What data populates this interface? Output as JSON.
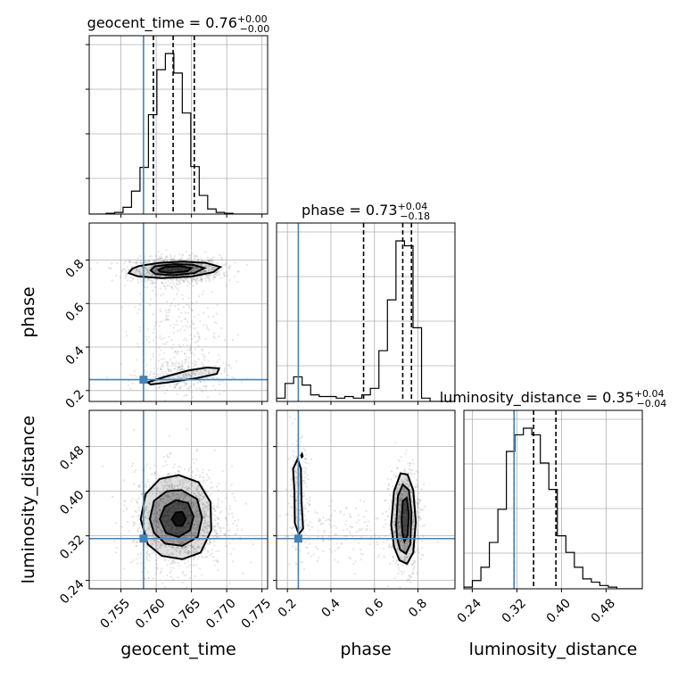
{
  "chart_data": {
    "type": "corner",
    "parameters": [
      "geocent_time",
      "phase",
      "luminosity_distance"
    ],
    "labels": {
      "geocent_time": "geocent_time",
      "phase": "phase",
      "luminosity_distance": "luminosity_distance"
    },
    "titles": [
      {
        "param": "geocent_time",
        "text": "geocent_time = 0.76",
        "sup": "+0.00",
        "sub": "−0.00"
      },
      {
        "param": "phase",
        "text": "phase = 0.73",
        "sup": "+0.04",
        "sub": "−0.18"
      },
      {
        "param": "luminosity_distance",
        "text": "luminosity_distance = 0.35",
        "sup": "+0.04",
        "sub": "−0.04"
      }
    ],
    "ranges": {
      "geocent_time": [
        0.7505,
        0.7758
      ],
      "phase": [
        0.15,
        0.97
      ],
      "luminosity_distance": [
        0.225,
        0.545
      ]
    },
    "ticks": {
      "geocent_time": {
        "values": [
          0.755,
          0.76,
          0.765,
          0.77,
          0.775
        ],
        "labels": [
          "0.755",
          "0.760",
          "0.765",
          "0.770",
          "0.775"
        ]
      },
      "phase_x": {
        "values": [
          0.2,
          0.4,
          0.6,
          0.8
        ],
        "labels": [
          "0.2",
          "0.4",
          "0.6",
          "0.8"
        ]
      },
      "phase_y": {
        "values": [
          0.2,
          0.4,
          0.6,
          0.8
        ],
        "labels": [
          "0.2",
          "0.4",
          "0.6",
          "0.8"
        ]
      },
      "luminosity_distance": {
        "values": [
          0.24,
          0.32,
          0.4,
          0.48
        ],
        "labels": [
          "0.24",
          "0.32",
          "0.40",
          "0.48"
        ]
      }
    },
    "truths": {
      "geocent_time": 0.7582,
      "phase": 0.25,
      "luminosity_distance": 0.315
    },
    "quantiles": {
      "geocent_time": [
        0.7596,
        0.7624,
        0.7654
      ],
      "phase": [
        0.55,
        0.73,
        0.77
      ],
      "luminosity_distance": [
        0.315,
        0.35,
        0.39
      ]
    },
    "histograms": {
      "geocent_time": {
        "edges": [
          0.7505,
          0.7517,
          0.7529,
          0.7541,
          0.7553,
          0.7565,
          0.7577,
          0.7589,
          0.7601,
          0.7613,
          0.7625,
          0.7637,
          0.7649,
          0.7661,
          0.7673,
          0.7685,
          0.7697,
          0.7709,
          0.7721,
          0.7733,
          0.7745,
          0.7757
        ],
        "counts": [
          0,
          0,
          1,
          2,
          8,
          27,
          55,
          117,
          170,
          189,
          166,
          119,
          56,
          22,
          6,
          2,
          1,
          0,
          0,
          0,
          0
        ]
      },
      "phase": {
        "edges": [
          0.15,
          0.1892,
          0.2284,
          0.2676,
          0.3068,
          0.346,
          0.3852,
          0.4244,
          0.4636,
          0.5028,
          0.542,
          0.5812,
          0.6204,
          0.6596,
          0.6988,
          0.738,
          0.7772,
          0.8164,
          0.8556,
          0.8948,
          0.934,
          0.97
        ],
        "counts": [
          0.02,
          0.11,
          0.15,
          0.1,
          0.04,
          0.03,
          0.03,
          0.02,
          0.03,
          0.02,
          0.04,
          0.08,
          0.31,
          0.62,
          0.98,
          0.95,
          0.45,
          0.02,
          0,
          0,
          0
        ]
      },
      "luminosity_distance": {
        "edges": [
          0.225,
          0.2402,
          0.2555,
          0.2707,
          0.286,
          0.3012,
          0.3164,
          0.3317,
          0.3469,
          0.3621,
          0.3774,
          0.3926,
          0.4079,
          0.4231,
          0.4383,
          0.4536,
          0.4688,
          0.484,
          0.4993,
          0.5145,
          0.5298,
          0.545
        ],
        "counts": [
          0.01,
          0.05,
          0.13,
          0.28,
          0.48,
          0.83,
          0.93,
          0.97,
          0.93,
          0.76,
          0.6,
          0.32,
          0.22,
          0.13,
          0.06,
          0.04,
          0.02,
          0.01,
          0,
          0,
          0
        ]
      }
    },
    "contours": {
      "phase_vs_geocent_time": [
        {
          "level": "outer",
          "points": [
            [
              0.7566,
              0.76
            ],
            [
              0.7575,
              0.772
            ],
            [
              0.7604,
              0.787
            ],
            [
              0.7638,
              0.793
            ],
            [
              0.767,
              0.787
            ],
            [
              0.7691,
              0.768
            ],
            [
              0.7681,
              0.744
            ],
            [
              0.765,
              0.724
            ],
            [
              0.7608,
              0.717
            ],
            [
              0.7574,
              0.725
            ],
            [
              0.7561,
              0.74
            ]
          ]
        },
        {
          "level": "middle",
          "points": [
            [
              0.7592,
              0.752
            ],
            [
              0.7598,
              0.771
            ],
            [
              0.7625,
              0.781
            ],
            [
              0.7652,
              0.778
            ],
            [
              0.7668,
              0.763
            ],
            [
              0.7654,
              0.74
            ],
            [
              0.7624,
              0.73
            ],
            [
              0.7599,
              0.735
            ]
          ]
        },
        {
          "level": "inner",
          "points": [
            [
              0.7603,
              0.755
            ],
            [
              0.7613,
              0.768
            ],
            [
              0.7634,
              0.772
            ],
            [
              0.765,
              0.763
            ],
            [
              0.7644,
              0.748
            ],
            [
              0.762,
              0.741
            ],
            [
              0.7605,
              0.746
            ]
          ]
        },
        {
          "level": "lower",
          "points": [
            [
              0.7588,
              0.238
            ],
            [
              0.7614,
              0.265
            ],
            [
              0.7645,
              0.292
            ],
            [
              0.7672,
              0.306
            ],
            [
              0.7689,
              0.302
            ],
            [
              0.7686,
              0.277
            ],
            [
              0.7658,
              0.257
            ],
            [
              0.7618,
              0.238
            ],
            [
              0.7592,
              0.228
            ]
          ]
        }
      ],
      "luminosity_distance_vs_geocent_time": [
        {
          "level": "outer",
          "points": [
            [
              0.7578,
              0.35
            ],
            [
              0.7585,
              0.395
            ],
            [
              0.7605,
              0.422
            ],
            [
              0.7632,
              0.429
            ],
            [
              0.766,
              0.416
            ],
            [
              0.7677,
              0.38
            ],
            [
              0.7678,
              0.33
            ],
            [
              0.7663,
              0.29
            ],
            [
              0.7637,
              0.278
            ],
            [
              0.7608,
              0.284
            ],
            [
              0.7588,
              0.305
            ]
          ]
        },
        {
          "level": "middle",
          "points": [
            [
              0.7591,
              0.35
            ],
            [
              0.7597,
              0.383
            ],
            [
              0.7615,
              0.4
            ],
            [
              0.7636,
              0.402
            ],
            [
              0.7658,
              0.386
            ],
            [
              0.7665,
              0.352
            ],
            [
              0.7659,
              0.318
            ],
            [
              0.7637,
              0.302
            ],
            [
              0.7613,
              0.306
            ],
            [
              0.7597,
              0.325
            ]
          ]
        },
        {
          "level": "inner",
          "points": [
            [
              0.7605,
              0.35
            ],
            [
              0.7612,
              0.372
            ],
            [
              0.7628,
              0.384
            ],
            [
              0.7645,
              0.379
            ],
            [
              0.7653,
              0.355
            ],
            [
              0.7648,
              0.33
            ],
            [
              0.7632,
              0.318
            ],
            [
              0.7614,
              0.325
            ]
          ]
        },
        {
          "level": "core",
          "points": [
            [
              0.7622,
              0.35
            ],
            [
              0.7628,
              0.362
            ],
            [
              0.7637,
              0.363
            ],
            [
              0.7642,
              0.35
            ],
            [
              0.7637,
              0.338
            ],
            [
              0.7628,
              0.338
            ]
          ]
        }
      ],
      "luminosity_distance_vs_phase": [
        {
          "level": "outer",
          "points": [
            [
              0.677,
              0.34
            ],
            [
              0.69,
              0.4
            ],
            [
              0.72,
              0.432
            ],
            [
              0.752,
              0.43
            ],
            [
              0.778,
              0.402
            ],
            [
              0.79,
              0.345
            ],
            [
              0.778,
              0.29
            ],
            [
              0.75,
              0.27
            ],
            [
              0.715,
              0.276
            ],
            [
              0.69,
              0.3
            ]
          ]
        },
        {
          "level": "middle",
          "points": [
            [
              0.7,
              0.34
            ],
            [
              0.708,
              0.392
            ],
            [
              0.73,
              0.412
            ],
            [
              0.758,
              0.402
            ],
            [
              0.77,
              0.362
            ],
            [
              0.765,
              0.305
            ],
            [
              0.745,
              0.288
            ],
            [
              0.718,
              0.295
            ],
            [
              0.704,
              0.316
            ]
          ]
        },
        {
          "level": "inner",
          "points": [
            [
              0.725,
              0.35
            ],
            [
              0.73,
              0.382
            ],
            [
              0.748,
              0.388
            ],
            [
              0.758,
              0.36
            ],
            [
              0.753,
              0.322
            ],
            [
              0.738,
              0.31
            ],
            [
              0.728,
              0.325
            ]
          ]
        },
        {
          "level": "upper-left",
          "points": [
            [
              0.232,
              0.4
            ],
            [
              0.226,
              0.44
            ],
            [
              0.247,
              0.458
            ],
            [
              0.262,
              0.44
            ],
            [
              0.265,
              0.38
            ],
            [
              0.272,
              0.333
            ],
            [
              0.252,
              0.323
            ],
            [
              0.234,
              0.343
            ]
          ]
        },
        {
          "level": "speck",
          "points": [
            [
              0.263,
              0.464
            ],
            [
              0.267,
              0.467
            ],
            [
              0.27,
              0.463
            ],
            [
              0.266,
              0.461
            ]
          ]
        }
      ]
    }
  }
}
